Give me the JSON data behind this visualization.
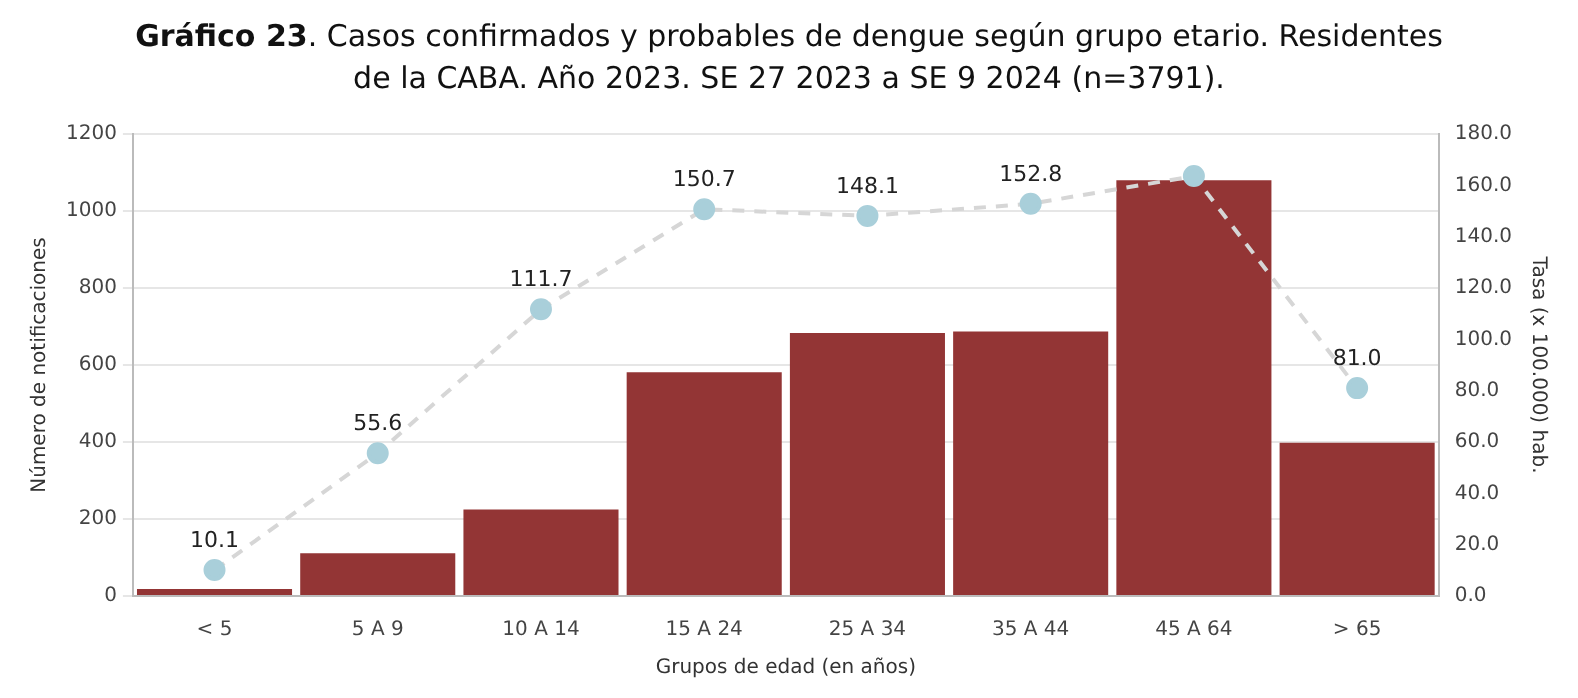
{
  "chart_data": {
    "type": "bar",
    "title": "Gráfico 23. Casos confirmados y probables de dengue según grupo etario. Residentes de la CABA. Año 2023. SE 27 2023 a SE 9 2024 (n=3791).",
    "xlabel": "Grupos de edad (en años)",
    "ylabel": "Número de notificaciones",
    "y2label": "Tasa (x 100.000) hab.",
    "categories": [
      "< 5",
      "5 A 9",
      "10 A 14",
      "15 A 24",
      "25 A 34",
      "35 A 44",
      "45 A 64",
      "> 65"
    ],
    "series": [
      {
        "color": "#933535",
        "values": [
          18,
          111,
          225,
          581,
          683,
          687,
          1080,
          398
        ]
      },
      {
        "type": "line",
        "axis": "y2",
        "color": "#a9cfda",
        "values": [
          10.1,
          55.6,
          111.7,
          150.7,
          148.1,
          152.8,
          163.6,
          81.0
        ],
        "value_labels": [
          "10.1",
          "55.6",
          "111.7",
          "150.7",
          "148.1",
          "152.8",
          null,
          "81.0"
        ]
      }
    ],
    "ylim": [
      0,
      1200
    ],
    "yticks": [
      0,
      200,
      400,
      600,
      800,
      1000,
      1200
    ],
    "y2lim": [
      0,
      180
    ],
    "y2ticks": [
      {
        "value": 0,
        "label": "0.0"
      },
      {
        "value": 20,
        "label": "20.0"
      },
      {
        "value": 40,
        "label": "40.0"
      },
      {
        "value": 60,
        "label": "60.0"
      },
      {
        "value": 80,
        "label": "80.0"
      },
      {
        "value": 100,
        "label": "100.0"
      },
      {
        "value": 120,
        "label": "120.0"
      },
      {
        "value": 140,
        "label": "140.0"
      },
      {
        "value": 160,
        "label": "160.0"
      },
      {
        "value": 180,
        "label": "180.0"
      }
    ],
    "grid": "y",
    "marker": "circle",
    "line_style": "dashed"
  }
}
